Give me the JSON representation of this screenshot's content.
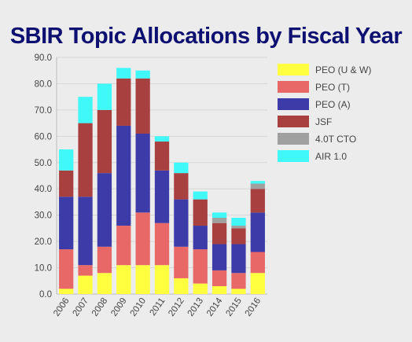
{
  "title": "SBIR Topic Allocations by Fiscal Year",
  "chart_data": {
    "type": "bar",
    "stacked": true,
    "categories": [
      "2006",
      "2007",
      "2008",
      "2009",
      "2010",
      "2011",
      "2012",
      "2013",
      "2014",
      "2015",
      "2016"
    ],
    "ylim": [
      0,
      90
    ],
    "yticks": [
      "0.0",
      "10.0",
      "20.0",
      "30.0",
      "40.0",
      "50.0",
      "60.0",
      "70.0",
      "80.0",
      "90.0"
    ],
    "grid": true,
    "legend_position": "right",
    "series": [
      {
        "name": "PEO (U & W)",
        "color": "#ffff40",
        "values": [
          2,
          7,
          8,
          11,
          11,
          11,
          6,
          4,
          3,
          2,
          8
        ]
      },
      {
        "name": "PEO (T)",
        "color": "#e86868",
        "values": [
          15,
          4,
          10,
          15,
          20,
          16,
          12,
          13,
          6,
          6,
          8
        ]
      },
      {
        "name": "PEO (A)",
        "color": "#3d3ba8",
        "values": [
          20,
          26,
          28,
          38,
          30,
          20,
          18,
          9,
          10,
          11,
          15
        ]
      },
      {
        "name": "JSF",
        "color": "#a84040",
        "values": [
          10,
          28,
          24,
          18,
          21,
          11,
          10,
          10,
          8,
          6,
          9
        ]
      },
      {
        "name": "4.0T CTO",
        "color": "#a0a0a0",
        "values": [
          0,
          0,
          0,
          0,
          0,
          0,
          0,
          0,
          2,
          1,
          2
        ]
      },
      {
        "name": "AIR 1.0",
        "color": "#40f8f8",
        "values": [
          8,
          10,
          10,
          4,
          3,
          2,
          4,
          3,
          2,
          3,
          1
        ]
      }
    ]
  }
}
